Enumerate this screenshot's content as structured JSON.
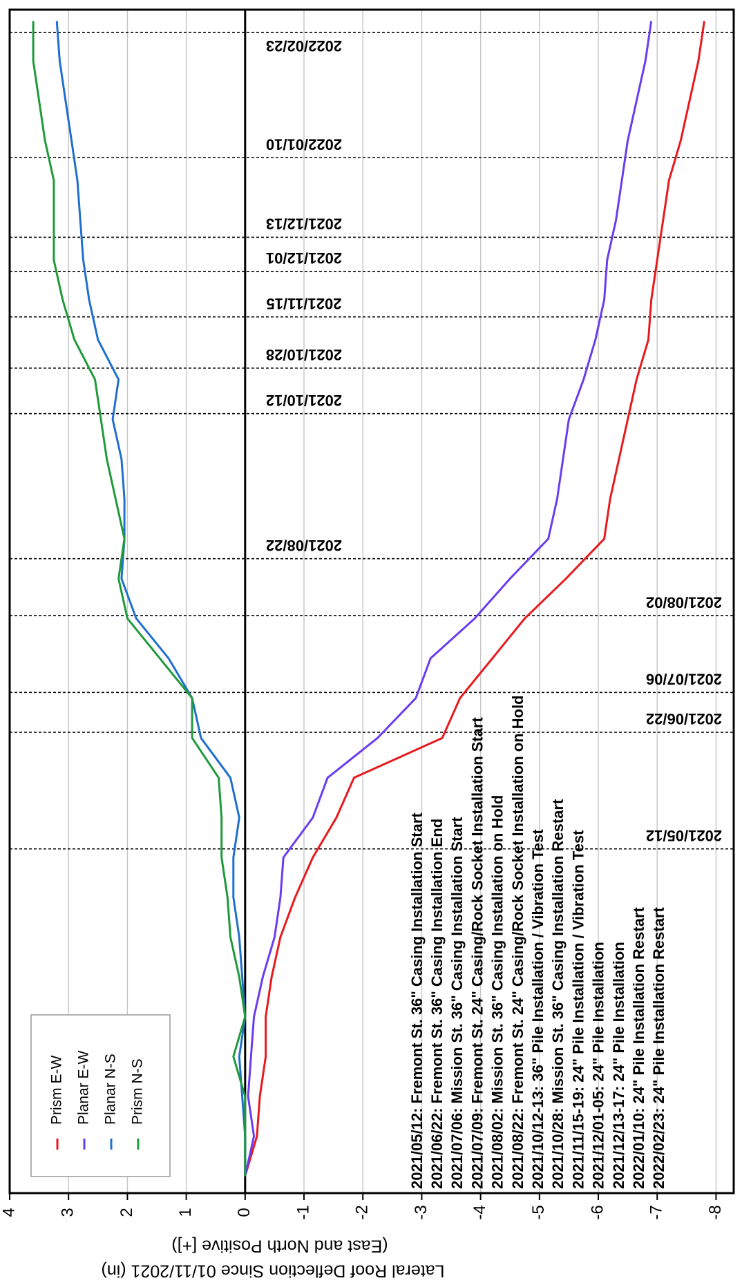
{
  "chart_data": {
    "type": "line",
    "axis_title": "Lateral Roof Deflection Since 01/11/2021 (in)",
    "axis_subtitle": "(East and North Positive [+])",
    "xlim": [
      "2021-01-11",
      "2022-03-03"
    ],
    "ylim": [
      -8.3,
      4
    ],
    "yticks": [
      4,
      3,
      2,
      1,
      0,
      -1,
      -2,
      -3,
      -4,
      -5,
      -6,
      -7,
      -8
    ],
    "grid": true,
    "legend": "lower-left",
    "x": [
      "2021-01-17",
      "2021-01-31",
      "2021-02-14",
      "2021-02-28",
      "2021-03-14",
      "2021-03-28",
      "2021-04-11",
      "2021-04-25",
      "2021-05-09",
      "2021-05-23",
      "2021-06-06",
      "2021-06-20",
      "2021-07-04",
      "2021-07-18",
      "2021-08-01",
      "2021-08-15",
      "2021-08-29",
      "2021-09-12",
      "2021-09-26",
      "2021-10-10",
      "2021-10-24",
      "2021-11-07",
      "2021-11-21",
      "2021-12-05",
      "2021-12-19",
      "2022-01-02",
      "2022-01-16",
      "2022-01-30",
      "2022-02-13",
      "2022-02-27"
    ],
    "series": [
      {
        "name": "Prism E-W",
        "color": "#e8191d",
        "values": [
          0,
          -0.2,
          -0.25,
          -0.35,
          -0.35,
          -0.45,
          -0.6,
          -0.85,
          -1.15,
          -1.55,
          -1.85,
          -3.35,
          -3.65,
          -4.2,
          -4.75,
          -5.45,
          -6.1,
          -6.2,
          -6.35,
          -6.5,
          -6.65,
          -6.85,
          -6.9,
          -7.0,
          -7.1,
          -7.2,
          -7.4,
          -7.55,
          -7.7,
          -7.8
        ]
      },
      {
        "name": "Planar E-W",
        "color": "#6a3cf0",
        "values": [
          0,
          -0.15,
          -0.05,
          -0.1,
          -0.15,
          -0.3,
          -0.5,
          -0.6,
          -0.65,
          -1.15,
          -1.4,
          -2.25,
          -2.9,
          -3.15,
          -3.9,
          -4.5,
          -5.15,
          -5.3,
          -5.4,
          -5.5,
          -5.75,
          -5.95,
          -6.1,
          -6.15,
          -6.3,
          -6.4,
          -6.5,
          -6.65,
          -6.8,
          -6.9
        ]
      },
      {
        "name": "Planar N-S",
        "color": "#1f6fd0",
        "values": [
          0,
          0,
          0.05,
          0.1,
          0,
          0.05,
          0.1,
          0.2,
          0.2,
          0.1,
          0.25,
          0.75,
          0.9,
          1.3,
          1.85,
          2.1,
          2.05,
          2.05,
          2.1,
          2.25,
          2.15,
          2.5,
          2.65,
          2.75,
          2.8,
          2.85,
          2.95,
          3.05,
          3.15,
          3.2
        ]
      },
      {
        "name": "Prism N-S",
        "color": "#1e9a3a",
        "values": [
          0,
          0,
          0,
          0.2,
          0,
          0.1,
          0.25,
          0.3,
          0.4,
          0.4,
          0.45,
          0.9,
          0.9,
          1.45,
          2.0,
          2.15,
          2.05,
          2.2,
          2.35,
          2.45,
          2.55,
          2.9,
          3.1,
          3.25,
          3.25,
          3.25,
          3.4,
          3.5,
          3.6,
          3.6
        ]
      }
    ],
    "event_lines": [
      "2021/05/12",
      "2021/06/22",
      "2021/07/06",
      "2021/08/02",
      "2021/08/22",
      "2021/10/12",
      "2021/10/28",
      "2021/11/15",
      "2021/12/01",
      "2021/12/13",
      "2022/01/10",
      "2022/02/23"
    ],
    "annotations": [
      "2021/05/12: Fremont St. 36\" Casing Installation Start",
      "2021/06/22: Fremont St. 36\" Casing Installation End",
      "2021/07/06: Mission St. 36\" Casing Installation Start",
      "2021/07/09: Fremont St. 24\" Casing/Rock Socket Installation Start",
      "2021/08/02: Mission St. 36\" Casing Installation on Hold",
      "2021/08/22: Fremont St. 24\" Casing/Rock Socket Installation on Hold",
      "2021/10/12-13: 36\" Pile Installation / Vibration Test",
      "2021/10/28: Mission St. 36\" Casing Installation Restart",
      "2021/11/15-19: 24\" Pile Installation / Vibration Test",
      "2021/12/01-05: 24\" Pile Installation",
      "2021/12/13-17: 24\" Pile Installation",
      "2022/01/10: 24\" Pile Installation Restart",
      "2022/02/23: 24\" Pile Installation Restart"
    ]
  }
}
